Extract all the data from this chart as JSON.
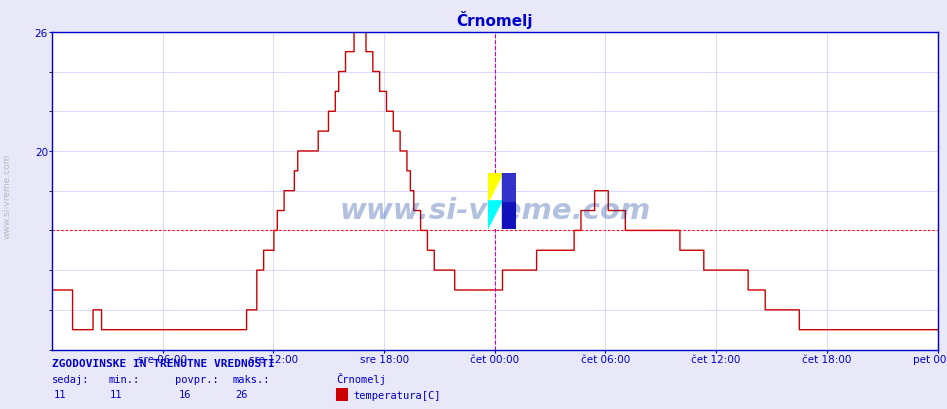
{
  "title": "Črnomelj",
  "title_color": "#0000cc",
  "bg_color": "#e8e8f8",
  "plot_bg_color": "#ffffff",
  "line_color": "#cc0000",
  "grid_color": "#ccccff",
  "axis_color": "#0000cc",
  "avg_line_color": "#ff0000",
  "avg_value": 16,
  "vline_color": "#cc00cc",
  "xlabel_ticks": [
    "sre 06:00",
    "sre 12:00",
    "sre 18:00",
    "čet 00:00",
    "čet 06:00",
    "čet 12:00",
    "čet 18:00",
    "pet 00:00"
  ],
  "ymin": 10,
  "ymax": 26,
  "yticks": [
    20,
    26
  ],
  "stat_label": "ZGODOVINSKE IN TRENUTNE VREDNOSTI",
  "stat_color": "#0000cc",
  "stat_sedaj": 11,
  "stat_min": 11,
  "stat_povpr": 16,
  "stat_maks": 26,
  "stat_series": "Črnomelj",
  "stat_unit": "temperatura[C]",
  "legend_color": "#cc0000",
  "temperature_data": [
    13,
    13,
    13,
    13,
    13,
    13,
    13,
    13,
    13,
    13,
    13,
    13,
    11,
    11,
    11,
    11,
    11,
    11,
    11,
    11,
    11,
    11,
    11,
    11,
    12,
    12,
    12,
    12,
    12,
    11,
    11,
    11,
    11,
    11,
    11,
    11,
    11,
    11,
    11,
    11,
    11,
    11,
    11,
    11,
    11,
    11,
    11,
    11,
    11,
    11,
    11,
    11,
    11,
    11,
    11,
    11,
    11,
    11,
    11,
    11,
    11,
    11,
    11,
    11,
    11,
    11,
    11,
    11,
    11,
    11,
    11,
    11,
    11,
    11,
    11,
    11,
    11,
    11,
    11,
    11,
    11,
    11,
    11,
    11,
    11,
    11,
    11,
    11,
    11,
    11,
    11,
    11,
    11,
    11,
    11,
    11,
    11,
    11,
    11,
    11,
    11,
    11,
    11,
    11,
    11,
    11,
    11,
    11,
    11,
    11,
    11,
    11,
    11,
    11,
    12,
    12,
    12,
    12,
    12,
    12,
    14,
    14,
    14,
    14,
    15,
    15,
    15,
    15,
    15,
    15,
    16,
    16,
    17,
    17,
    17,
    17,
    18,
    18,
    18,
    18,
    18,
    18,
    19,
    19,
    20,
    20,
    20,
    20,
    20,
    20,
    20,
    20,
    20,
    20,
    20,
    20,
    21,
    21,
    21,
    21,
    21,
    21,
    22,
    22,
    22,
    22,
    23,
    23,
    24,
    24,
    24,
    24,
    25,
    25,
    25,
    25,
    25,
    26,
    26,
    26,
    26,
    26,
    26,
    26,
    25,
    25,
    25,
    25,
    24,
    24,
    24,
    24,
    23,
    23,
    23,
    23,
    22,
    22,
    22,
    22,
    21,
    21,
    21,
    21,
    20,
    20,
    20,
    20,
    19,
    19,
    18,
    18,
    17,
    17,
    17,
    17,
    16,
    16,
    16,
    16,
    15,
    15,
    15,
    15,
    14,
    14,
    14,
    14,
    14,
    14,
    14,
    14,
    14,
    14,
    14,
    14,
    13,
    13,
    13,
    13,
    13,
    13,
    13,
    13,
    13,
    13,
    13,
    13,
    13,
    13,
    13,
    13,
    13,
    13,
    13,
    13,
    13,
    13,
    13,
    13,
    13,
    13,
    13,
    13,
    14,
    14,
    14,
    14,
    14,
    14,
    14,
    14,
    14,
    14,
    14,
    14,
    14,
    14,
    14,
    14,
    14,
    14,
    14,
    14,
    15,
    15,
    15,
    15,
    15,
    15,
    15,
    15,
    15,
    15,
    15,
    15,
    15,
    15,
    15,
    15,
    15,
    15,
    15,
    15,
    15,
    15,
    16,
    16,
    16,
    16,
    17,
    17,
    17,
    17,
    17,
    17,
    17,
    17,
    18,
    18,
    18,
    18,
    18,
    18,
    18,
    18,
    17,
    17,
    17,
    17,
    17,
    17,
    17,
    17,
    17,
    17,
    16,
    16,
    16,
    16,
    16,
    16,
    16,
    16,
    16,
    16,
    16,
    16,
    16,
    16,
    16,
    16,
    16,
    16,
    16,
    16,
    16,
    16,
    16,
    16,
    16,
    16,
    16,
    16,
    16,
    16,
    16,
    16,
    15,
    15,
    15,
    15,
    15,
    15,
    15,
    15,
    15,
    15,
    15,
    15,
    15,
    15,
    14,
    14,
    14,
    14,
    14,
    14,
    14,
    14,
    14,
    14,
    14,
    14,
    14,
    14,
    14,
    14,
    14,
    14,
    14,
    14,
    14,
    14,
    14,
    14,
    14,
    14,
    13,
    13,
    13,
    13,
    13,
    13,
    13,
    13,
    13,
    13,
    12,
    12,
    12,
    12,
    12,
    12,
    12,
    12,
    12,
    12,
    12,
    12,
    12,
    12,
    12,
    12,
    12,
    12,
    12,
    12,
    11,
    11,
    11,
    11,
    11,
    11,
    11,
    11,
    11,
    11,
    11,
    11,
    11,
    11,
    11,
    11,
    11,
    11,
    11,
    11,
    11,
    11,
    11,
    11,
    11,
    11,
    11,
    11,
    11,
    11,
    11,
    11,
    11,
    11,
    11,
    11,
    11,
    11,
    11,
    11,
    11,
    11,
    11,
    11,
    11,
    11,
    11,
    11,
    11,
    11,
    11,
    11,
    11,
    11,
    11,
    11,
    11,
    11,
    11,
    11,
    11,
    11,
    11,
    11,
    11,
    11,
    11,
    11,
    11,
    11,
    11,
    11,
    11,
    11,
    11,
    11,
    11,
    11,
    11,
    11,
    11,
    11
  ]
}
